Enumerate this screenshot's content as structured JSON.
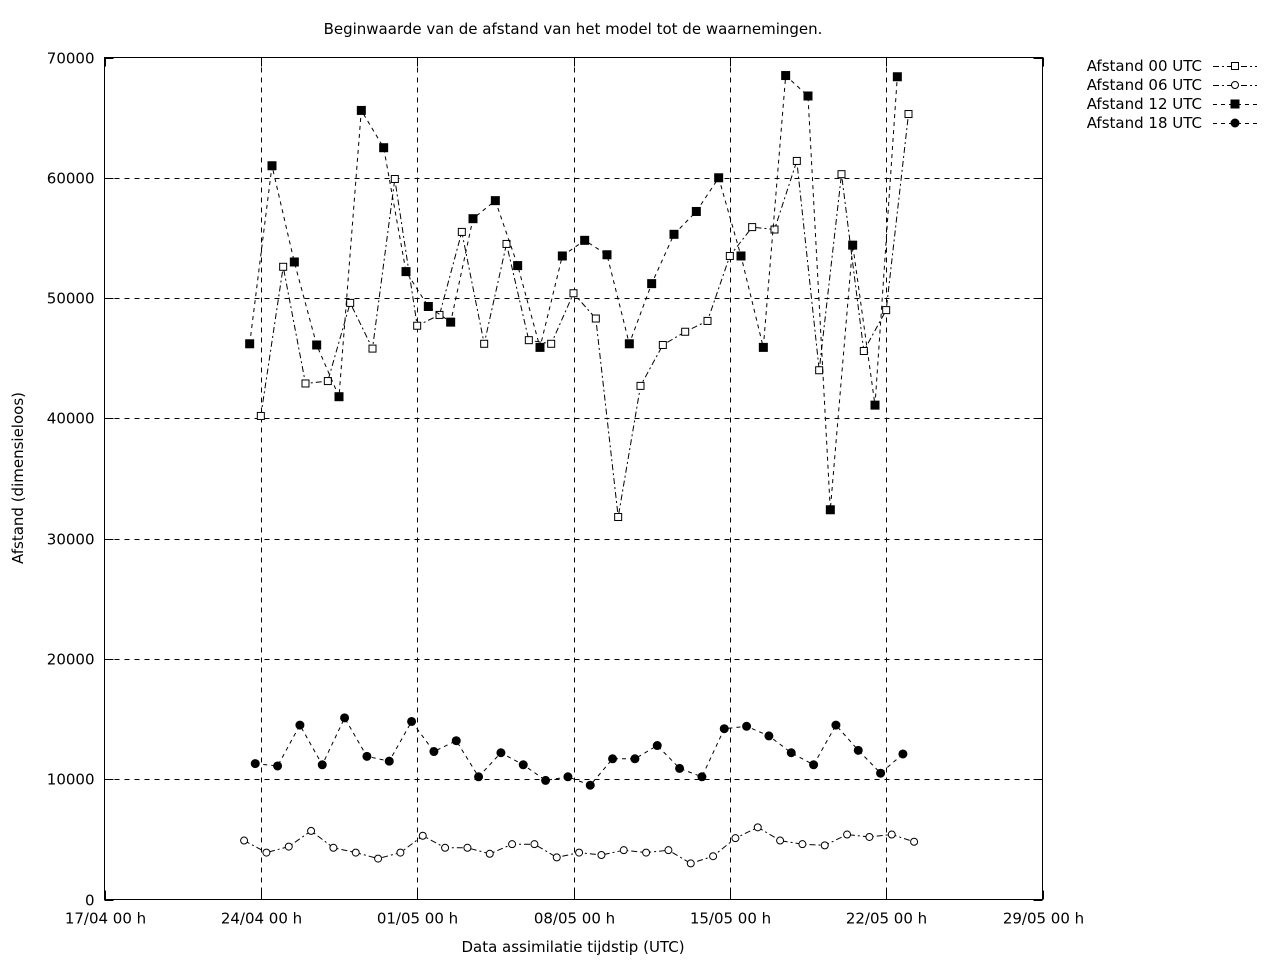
{
  "chart_data": {
    "type": "line",
    "title": "Beginwaarde van de afstand van het model tot de waarnemingen.",
    "xlabel": "Data assimilatie tijdstip (UTC)",
    "ylabel": "Afstand (dimensieloos)",
    "x_unit": "days since 17/04 00 h",
    "xlim": [
      0,
      42
    ],
    "ylim": [
      0,
      70000
    ],
    "x_ticks": [
      {
        "value": 0,
        "label": "17/04 00 h"
      },
      {
        "value": 7,
        "label": "24/04 00 h"
      },
      {
        "value": 14,
        "label": "01/05 00 h"
      },
      {
        "value": 21,
        "label": "08/05 00 h"
      },
      {
        "value": 28,
        "label": "15/05 00 h"
      },
      {
        "value": 35,
        "label": "22/05 00 h"
      },
      {
        "value": 42,
        "label": "29/05 00 h"
      }
    ],
    "y_ticks": [
      {
        "value": 0,
        "label": "0"
      },
      {
        "value": 10000,
        "label": "10000"
      },
      {
        "value": 20000,
        "label": "20000"
      },
      {
        "value": 30000,
        "label": "30000"
      },
      {
        "value": 40000,
        "label": "40000"
      },
      {
        "value": 50000,
        "label": "50000"
      },
      {
        "value": 60000,
        "label": "60000"
      },
      {
        "value": 70000,
        "label": "70000"
      }
    ],
    "grid": "dashed, major ticks",
    "legend_position": "right of plot, top",
    "series": [
      {
        "name": "Afstand 00 UTC",
        "marker": "open-square",
        "line": "dash-dot",
        "x": [
          7,
          8,
          9,
          10,
          11,
          12,
          13,
          14,
          15,
          16,
          17,
          18,
          19,
          20,
          21,
          22,
          23,
          24,
          25,
          26,
          27,
          28,
          29,
          30,
          31,
          32,
          33,
          34,
          35,
          36
        ],
        "values": [
          40200,
          52600,
          42900,
          43100,
          49600,
          45800,
          59900,
          47700,
          48600,
          55500,
          46200,
          54500,
          46500,
          46200,
          50400,
          48300,
          31800,
          42700,
          46100,
          47200,
          48100,
          53500,
          55900,
          55700,
          61400,
          44000,
          60300,
          45600,
          49000,
          65300
        ]
      },
      {
        "name": "Afstand 06 UTC",
        "marker": "open-circle",
        "line": "dash-dot",
        "x": [
          6.25,
          7.25,
          8.25,
          9.25,
          10.25,
          11.25,
          12.25,
          13.25,
          14.25,
          15.25,
          16.25,
          17.25,
          18.25,
          19.25,
          20.25,
          21.25,
          22.25,
          23.25,
          24.25,
          25.25,
          26.25,
          27.25,
          28.25,
          29.25,
          30.25,
          31.25,
          32.25,
          33.25,
          34.25,
          35.25,
          36.25
        ],
        "values": [
          4900,
          3900,
          4400,
          5700,
          4300,
          3900,
          3400,
          3900,
          5300,
          4300,
          4300,
          3800,
          4600,
          4600,
          3500,
          3900,
          3700,
          4100,
          3900,
          4100,
          3000,
          3600,
          5100,
          6000,
          4900,
          4600,
          4500,
          5400,
          5200,
          5400,
          4800
        ]
      },
      {
        "name": "Afstand 12 UTC",
        "marker": "filled-square",
        "line": "dashed",
        "x": [
          6.5,
          7.5,
          8.5,
          9.5,
          10.5,
          11.5,
          12.5,
          13.5,
          14.5,
          15.5,
          16.5,
          17.5,
          18.5,
          19.5,
          20.5,
          21.5,
          22.5,
          23.5,
          24.5,
          25.5,
          26.5,
          27.5,
          28.5,
          29.5,
          30.5,
          31.5,
          32.5,
          33.5,
          34.5,
          35.5
        ],
        "values": [
          46200,
          61000,
          53000,
          46100,
          41800,
          65600,
          62500,
          52200,
          49300,
          48000,
          56600,
          58100,
          52700,
          45900,
          53500,
          54800,
          53600,
          46200,
          51200,
          55300,
          57200,
          60000,
          53500,
          45900,
          68500,
          66800,
          32400,
          54400,
          41100,
          68400
        ]
      },
      {
        "name": "Afstand 18 UTC",
        "marker": "filled-circle",
        "line": "dashed",
        "x": [
          6.75,
          7.75,
          8.75,
          9.75,
          10.75,
          11.75,
          12.75,
          13.75,
          14.75,
          15.75,
          16.75,
          17.75,
          18.75,
          19.75,
          20.75,
          21.75,
          22.75,
          23.75,
          24.75,
          25.75,
          26.75,
          27.75,
          28.75,
          29.75,
          30.75,
          31.75,
          32.75,
          33.75,
          34.75,
          35.75
        ],
        "values": [
          11300,
          11100,
          14500,
          11200,
          15100,
          11900,
          11500,
          14800,
          12300,
          13200,
          10200,
          12200,
          11200,
          9900,
          10200,
          9500,
          11700,
          11700,
          12800,
          10900,
          10200,
          14200,
          14400,
          13600,
          12200,
          11200,
          14500,
          12400,
          10500,
          12100
        ]
      }
    ]
  }
}
